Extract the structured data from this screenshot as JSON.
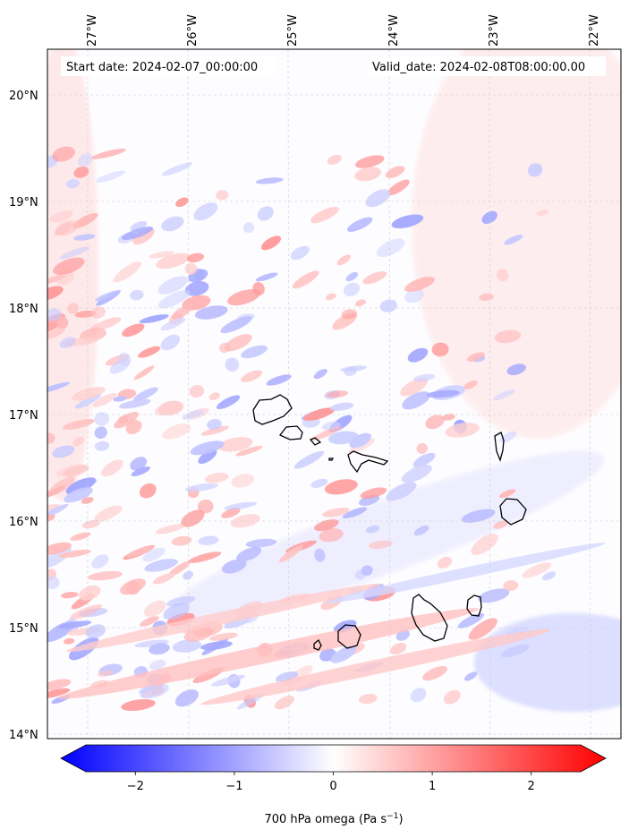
{
  "header": {
    "start_date": "Start date: 2024-02-07_00:00:00",
    "valid_date": "Valid_date: 2024-02-08T08:00:00.00"
  },
  "map": {
    "lon_labels": [
      "27°W",
      "26°W",
      "25°W",
      "24°W",
      "23°W",
      "22°W"
    ],
    "lat_labels": [
      "20°N",
      "19°N",
      "18°N",
      "17°N",
      "16°N",
      "15°N",
      "14°N"
    ],
    "coastline_color": "#000000",
    "gridline_color": "#c8c8c8"
  },
  "colorbar": {
    "label_prefix": "700 hPa omega (Pa s",
    "label_exponent": "−1",
    "label_suffix": ")",
    "ticks": [
      {
        "value": -2,
        "label": "−2"
      },
      {
        "value": -1,
        "label": "−1"
      },
      {
        "value": 0,
        "label": "0"
      },
      {
        "value": 1,
        "label": "1"
      },
      {
        "value": 2,
        "label": "2"
      }
    ],
    "range": [
      -2.6,
      2.6
    ],
    "colormap": "bwr",
    "low_color": "#0000ff",
    "mid_color": "#ffffff",
    "high_color": "#ff0000",
    "extend": "both"
  }
}
